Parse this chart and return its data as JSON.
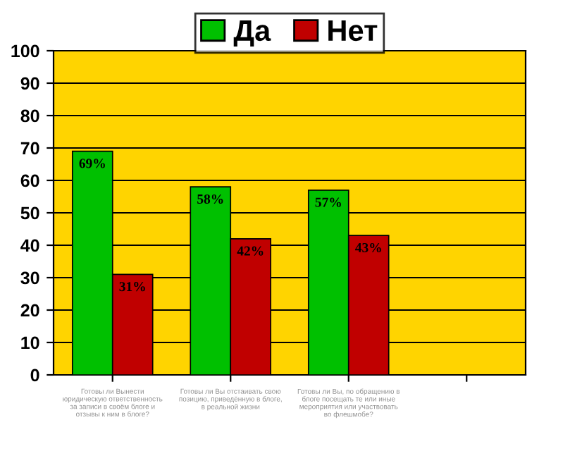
{
  "chart_data": {
    "type": "bar",
    "categories": [
      "Готовы ли Вынести\nюридическую ответственность\nза записи в своём блоге и\nотзывы к ним в блоге?",
      "Готовы ли Вы отстаивать свою\nпозицию, приведённую в блоге,\nв реальной жизни",
      "Готовы ли Вы, по обращению в\nблоге посещать те или иные\nмероприятия или участвовать\nво флешмобе?",
      null
    ],
    "series": [
      {
        "name": "Да",
        "color": "#00c000",
        "values": [
          69,
          58,
          57,
          null
        ],
        "value_labels": [
          "69%",
          "58%",
          "57%",
          null
        ]
      },
      {
        "name": "Нет",
        "color": "#c00000",
        "values": [
          31,
          42,
          43,
          null
        ],
        "value_labels": [
          "31%",
          "42%",
          "43%",
          null
        ]
      }
    ],
    "ylim": [
      0,
      100
    ],
    "yticks": [
      0,
      10,
      20,
      30,
      40,
      50,
      60,
      70,
      80,
      90,
      100
    ],
    "grid": "y",
    "legend": "top"
  }
}
